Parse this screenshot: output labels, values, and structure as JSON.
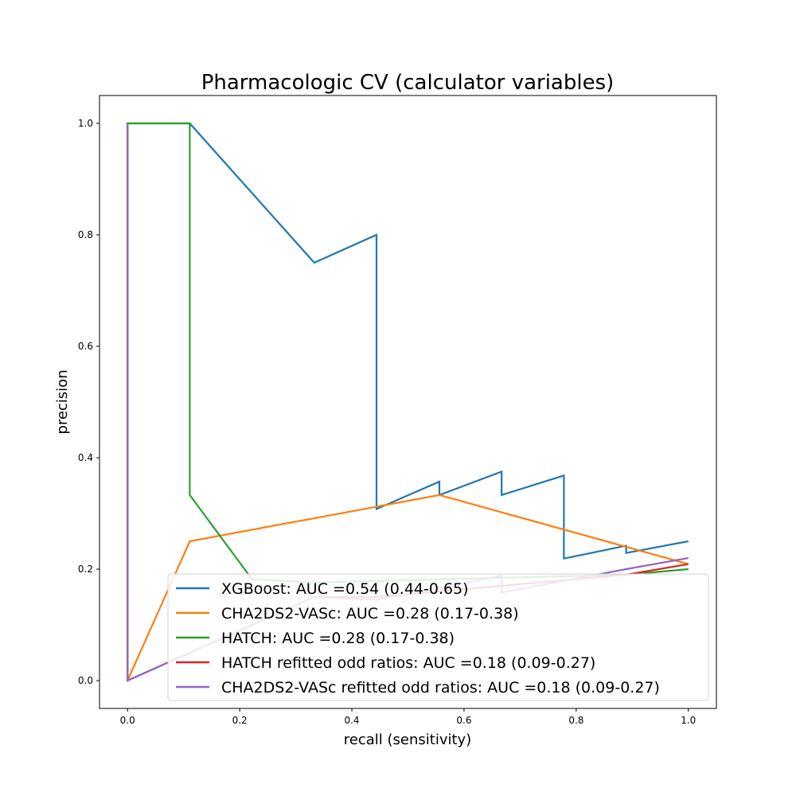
{
  "chart_data": {
    "type": "line",
    "title": "Pharmacologic CV (calculator variables)",
    "xlabel": "recall (sensitivity)",
    "ylabel": "precision",
    "xlim": [
      -0.05,
      1.05
    ],
    "ylim": [
      -0.05,
      1.05
    ],
    "xticks": [
      0.0,
      0.2,
      0.4,
      0.6,
      0.8,
      1.0
    ],
    "yticks": [
      0.0,
      0.2,
      0.4,
      0.6,
      0.8,
      1.0
    ],
    "tick_labels_x": [
      "0.0",
      "0.2",
      "0.4",
      "0.6",
      "0.8",
      "1.0"
    ],
    "tick_labels_y": [
      "0.0",
      "0.2",
      "0.4",
      "0.6",
      "0.8",
      "1.0"
    ],
    "grid": false,
    "legend_position": "lower-right",
    "series": [
      {
        "name": "XGBoost: AUC =0.54 (0.44-0.65)",
        "color": "#1f77b4",
        "x": [
          0.0,
          0.0,
          0.111,
          0.333,
          0.444,
          0.444,
          0.556,
          0.556,
          0.667,
          0.667,
          0.778,
          0.778,
          0.889,
          0.889,
          1.0
        ],
        "y": [
          0.0,
          1.0,
          1.0,
          0.75,
          0.8,
          0.308,
          0.357,
          0.333,
          0.375,
          0.333,
          0.368,
          0.219,
          0.242,
          0.229,
          0.25
        ]
      },
      {
        "name": "CHA2DS2-VASc: AUC =0.28 (0.17-0.38)",
        "color": "#ff7f0e",
        "x": [
          0.0,
          0.111,
          0.556,
          1.0
        ],
        "y": [
          0.0,
          0.25,
          0.333,
          0.209
        ]
      },
      {
        "name": "HATCH: AUC =0.28 (0.17-0.38)",
        "color": "#2ca02c",
        "x": [
          0.0,
          0.0,
          0.111,
          0.111,
          0.222,
          0.333,
          0.889,
          1.0
        ],
        "y": [
          0.0,
          1.0,
          1.0,
          0.333,
          0.182,
          0.176,
          0.19,
          0.2
        ]
      },
      {
        "name": "HATCH refitted odd ratios: AUC =0.18 (0.09-0.27)",
        "color": "#d62728",
        "x": [
          0.0,
          0.0,
          0.0,
          0.333,
          0.444,
          0.889,
          1.0
        ],
        "y": [
          1.0,
          0.0,
          0.0,
          0.15,
          0.15,
          0.19,
          0.209
        ]
      },
      {
        "name": "CHA2DS2-VASc refitted odd ratios: AUC =0.18 (0.09-0.27)",
        "color": "#9467bd",
        "x": [
          0.0,
          0.0,
          0.0,
          0.333,
          0.444,
          0.667,
          0.667,
          0.889,
          1.0
        ],
        "y": [
          1.0,
          0.0,
          0.0,
          0.15,
          0.145,
          0.188,
          0.158,
          0.2,
          0.22
        ]
      }
    ]
  }
}
